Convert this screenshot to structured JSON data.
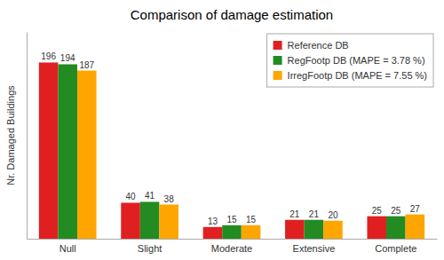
{
  "chart_data": {
    "type": "bar",
    "title": "Comparison of damage estimation",
    "ylabel": "Nr. Damaged Buildings",
    "categories": [
      "Null",
      "Slight",
      "Moderate",
      "Extensive",
      "Complete"
    ],
    "series": [
      {
        "name": "Reference DB",
        "color": "#e02020",
        "values": [
          196,
          40,
          13,
          21,
          25
        ]
      },
      {
        "name": "RegFootp DB (MAPE = 3.78 %)",
        "color": "#228B22",
        "values": [
          194,
          41,
          15,
          21,
          25
        ]
      },
      {
        "name": "IrregFootp DB (MAPE = 7.55 %)",
        "color": "#FFA500",
        "values": [
          187,
          38,
          15,
          20,
          27
        ]
      }
    ],
    "ylim": [
      0,
      230
    ],
    "data_labels": true,
    "legend": "upper right",
    "tick_labels": "x",
    "grid": false
  }
}
